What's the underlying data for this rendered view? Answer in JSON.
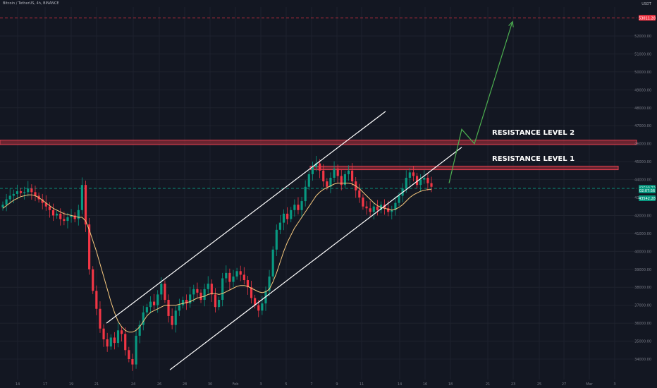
{
  "header": {
    "symbol_info": "Bitcoin / TetherUS, 4h, BINANCE",
    "currency": "USDT"
  },
  "chart_data": {
    "type": "candlestick",
    "price_axis": {
      "ticks": [
        34000,
        35000,
        36000,
        37000,
        38000,
        39000,
        40000,
        41000,
        42000,
        43000,
        44000,
        45000,
        46000,
        47000,
        48000,
        49000,
        50000,
        51000,
        52000
      ],
      "ylim": [
        33000,
        53600
      ]
    },
    "time_axis": {
      "ticks": [
        "14",
        "17",
        "19",
        "21",
        "24",
        "26",
        "28",
        "30",
        "Feb",
        "3",
        "5",
        "7",
        "9",
        "11",
        "14",
        "16",
        "18",
        "21",
        "23",
        "25",
        "27",
        "Mar",
        "3"
      ]
    },
    "price_tags": [
      {
        "label": "53011.28",
        "price": 53011.28,
        "color": "#f23645"
      },
      {
        "label": "43508.72",
        "price": 43540,
        "color": "#089981"
      },
      {
        "label": "02:07:56",
        "price": 43400,
        "color": "#089981"
      },
      {
        "label": "43542.28",
        "price": 42960,
        "color": "#089981"
      }
    ],
    "reference_lines": [
      {
        "price": 53011.28,
        "color": "#f23645",
        "style": "dashed"
      },
      {
        "price": 43508.72,
        "color": "#089981",
        "style": "dashed"
      }
    ],
    "candles_close": [
      42600,
      42900,
      43100,
      43200,
      43350,
      43250,
      43300,
      43500,
      43300,
      43100,
      42900,
      42700,
      42500,
      42300,
      42000,
      42100,
      41800,
      41700,
      41900,
      42000,
      41800,
      42300,
      43700,
      41500,
      39000,
      37800,
      36800,
      35700,
      35100,
      34700,
      35200,
      34900,
      35600,
      35400,
      34500,
      34000,
      33700,
      35300,
      35900,
      36600,
      36900,
      37200,
      37000,
      37600,
      38200,
      37300,
      36400,
      35900,
      36700,
      37000,
      37300,
      37100,
      37600,
      37900,
      37700,
      37300,
      37900,
      38200,
      37600,
      36900,
      37300,
      38500,
      38800,
      38300,
      38600,
      38900,
      38700,
      38400,
      38000,
      37400,
      37000,
      36700,
      37100,
      37800,
      38600,
      40100,
      41200,
      41600,
      42100,
      41800,
      42300,
      42600,
      42300,
      42800,
      43600,
      44300,
      44700,
      44900,
      44500,
      43900,
      43600,
      44100,
      44600,
      44200,
      43700,
      44300,
      44500,
      43900,
      43400,
      43000,
      42500,
      42400,
      42200,
      42500,
      42300,
      42600,
      42400,
      42200,
      42300,
      42700,
      43100,
      43500,
      44100,
      44400,
      44200,
      43700,
      44000,
      44100,
      43800,
      43600
    ],
    "candles_open_ref": "previous close",
    "moving_average": {
      "color": "#f7c97e",
      "values": [
        42400,
        42550,
        42700,
        42850,
        42950,
        43050,
        43100,
        43150,
        43150,
        43100,
        43000,
        42850,
        42700,
        42550,
        42400,
        42300,
        42200,
        42100,
        42050,
        42000,
        41950,
        41900,
        41900,
        41700,
        41200,
        40600,
        40000,
        39300,
        38600,
        37900,
        37200,
        36600,
        36100,
        35800,
        35600,
        35500,
        35500,
        35600,
        35800,
        36100,
        36400,
        36600,
        36700,
        36800,
        36900,
        37000,
        37000,
        37000,
        37000,
        37050,
        37100,
        37150,
        37200,
        37300,
        37400,
        37450,
        37500,
        37600,
        37650,
        37650,
        37600,
        37650,
        37750,
        37850,
        37950,
        38050,
        38100,
        38100,
        38050,
        37950,
        37850,
        37750,
        37700,
        37750,
        37900,
        38300,
        38800,
        39400,
        40000,
        40500,
        40900,
        41300,
        41600,
        41900,
        42200,
        42500,
        42800,
        43100,
        43300,
        43450,
        43550,
        43650,
        43750,
        43800,
        43800,
        43800,
        43800,
        43750,
        43650,
        43500,
        43300,
        43100,
        42900,
        42700,
        42550,
        42450,
        42400,
        42350,
        42300,
        42350,
        42450,
        42600,
        42800,
        43000,
        43150,
        43250,
        43350,
        43400,
        43450,
        43450
      ]
    },
    "channel": {
      "upper": [
        {
          "date": "Jan 21",
          "price": 36000
        },
        {
          "date": "Feb 12",
          "price": 47800
        }
      ],
      "lower": [
        {
          "date": "Jan 26",
          "price": 33400
        },
        {
          "date": "Feb 18",
          "price": 45800
        }
      ],
      "color": "#ffffff"
    },
    "projection": {
      "color": "#4caf50",
      "points": [
        {
          "date": "Feb 17",
          "price": 43800
        },
        {
          "date": "Feb 18",
          "price": 46800
        },
        {
          "date": "Feb 19",
          "price": 46000
        },
        {
          "date": "Feb 22",
          "price": 52800
        }
      ]
    },
    "zones": [
      {
        "label": "RESISTANCE LEVEL 2",
        "top": 46200,
        "bottom": 45950,
        "color": "#b2303d"
      },
      {
        "label": "RESISTANCE  LEVEL 1",
        "top": 44750,
        "bottom": 44550,
        "color": "#b2303d"
      }
    ],
    "colors": {
      "up": "#089981",
      "down": "#f23645",
      "background": "#131722"
    }
  }
}
